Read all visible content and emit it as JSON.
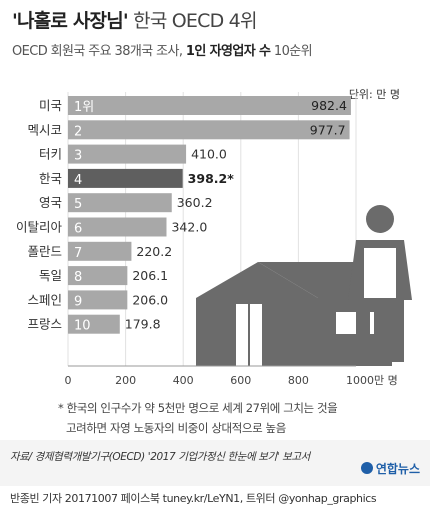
{
  "title": {
    "main": "'나홀로 사장님'",
    "rest": " 한국 OECD 4위"
  },
  "subtitle": {
    "prefix": "OECD 회원국 주요 38개국 조사, ",
    "bold": "1인 자영업자 수",
    "suffix": " 10순위"
  },
  "chart_data": {
    "type": "bar",
    "orientation": "horizontal",
    "unit": "단위: 만 명",
    "categories": [
      "미국",
      "멕시코",
      "터키",
      "한국",
      "영국",
      "이탈리아",
      "폴란드",
      "독일",
      "스페인",
      "프랑스"
    ],
    "ranks": [
      "1위",
      "2",
      "3",
      "4",
      "5",
      "6",
      "7",
      "8",
      "9",
      "10"
    ],
    "values": [
      982.4,
      977.7,
      410.0,
      398.2,
      360.2,
      342.0,
      220.2,
      206.1,
      206.0,
      179.8
    ],
    "value_labels": [
      "982.4",
      "977.7",
      "410.0",
      "398.2*",
      "360.2",
      "342.0",
      "220.2",
      "206.1",
      "206.0",
      "179.8"
    ],
    "highlight": "한국",
    "xlim": [
      0,
      1000
    ],
    "xticks": [
      "0",
      "200",
      "400",
      "600",
      "800",
      "1000만 명"
    ],
    "colors": {
      "bar": "#a8a8a8",
      "highlight_bar": "#5f5f5f",
      "illustration": "#6b6b6b"
    }
  },
  "note": {
    "line1": "* 한국의 인구수가 약 5천만 명으로 세계 27위에 그치는 것을",
    "line2": "고려하면 자영 노동자의 비중이 상대적으로 높음"
  },
  "source": "자료/ 경제협력개발기구(OECD) '2017 기업가정신 한눈에 보기' 보고서",
  "logo": "연합뉴스",
  "credit": "반종빈 기자 20171007  페이스북 tuney.kr/LeYN1, 트위터 @yonhap_graphics"
}
